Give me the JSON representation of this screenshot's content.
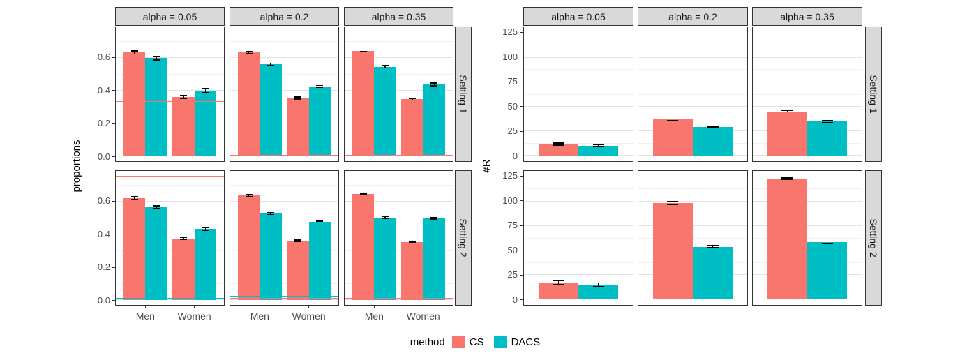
{
  "legend": {
    "title": "method",
    "items": [
      {
        "label": "CS",
        "color": "#F8766D"
      },
      {
        "label": "DACS",
        "color": "#00BFC4"
      }
    ]
  },
  "colors": {
    "cs": "#F8766D",
    "dacs": "#00BFC4",
    "strip_bg": "#D9D9D9",
    "border": "#333333",
    "grid_major": "#E3E3E3",
    "grid_minor": "#F0F0F0",
    "axis_text": "#4D4D4D",
    "error_bar": "#000000"
  },
  "chart_data": [
    {
      "type": "bar",
      "ylabel": "proportions",
      "xlabel": "",
      "facet_cols": [
        "alpha = 0.05",
        "alpha = 0.2",
        "alpha = 0.35"
      ],
      "facet_rows": [
        "Setting 1",
        "Setting 2"
      ],
      "x_ticks": [
        "Men",
        "Women"
      ],
      "ylim": [
        -0.03,
        0.787
      ],
      "yticks": [
        0.0,
        0.2,
        0.4,
        0.6
      ],
      "ytick_labels": [
        "0.0",
        "0.2",
        "0.4",
        "0.6"
      ],
      "yticks_minor": [
        0.1,
        0.3,
        0.5,
        0.7
      ],
      "legend_position": "bottom",
      "grid": true,
      "panels": [
        {
          "row": "Setting 1",
          "col": "alpha = 0.05",
          "series": [
            {
              "name": "CS",
              "values": [
                0.633,
                0.36
              ],
              "errors": [
                0.01,
                0.01
              ]
            },
            {
              "name": "DACS",
              "values": [
                0.598,
                0.4
              ],
              "errors": [
                0.01,
                0.012
              ]
            }
          ],
          "ref_lines": [
            {
              "y": 0.333,
              "series": "CS"
            }
          ]
        },
        {
          "row": "Setting 1",
          "col": "alpha = 0.2",
          "series": [
            {
              "name": "CS",
              "values": [
                0.633,
                0.355
              ],
              "errors": [
                0.006,
                0.006
              ]
            },
            {
              "name": "DACS",
              "values": [
                0.56,
                0.425
              ],
              "errors": [
                0.007,
                0.007
              ]
            }
          ],
          "ref_lines": [
            {
              "y": 0.005,
              "series": "CS"
            }
          ]
        },
        {
          "row": "Setting 1",
          "col": "alpha = 0.35",
          "series": [
            {
              "name": "CS",
              "values": [
                0.643,
                0.348
              ],
              "errors": [
                0.005,
                0.005
              ]
            },
            {
              "name": "DACS",
              "values": [
                0.545,
                0.438
              ],
              "errors": [
                0.007,
                0.008
              ]
            }
          ],
          "ref_lines": [
            {
              "y": 0.005,
              "series": "CS"
            }
          ]
        },
        {
          "row": "Setting 2",
          "col": "alpha = 0.05",
          "series": [
            {
              "name": "CS",
              "values": [
                0.622,
                0.375
              ],
              "errors": [
                0.008,
                0.007
              ]
            },
            {
              "name": "DACS",
              "values": [
                0.567,
                0.432
              ],
              "errors": [
                0.008,
                0.009
              ]
            }
          ],
          "ref_lines": [
            {
              "y": 0.755,
              "series": "CS"
            },
            {
              "y": 0.01,
              "series": "DACS"
            }
          ]
        },
        {
          "row": "Setting 2",
          "col": "alpha = 0.2",
          "series": [
            {
              "name": "CS",
              "values": [
                0.637,
                0.36
              ],
              "errors": [
                0.005,
                0.005
              ]
            },
            {
              "name": "DACS",
              "values": [
                0.526,
                0.476
              ],
              "errors": [
                0.005,
                0.005
              ]
            }
          ],
          "ref_lines": [
            {
              "y": 0.022,
              "series": "DACS"
            },
            {
              "y": 0.01,
              "series": "CS"
            }
          ]
        },
        {
          "row": "Setting 2",
          "col": "alpha = 0.35",
          "series": [
            {
              "name": "CS",
              "values": [
                0.647,
                0.353
              ],
              "errors": [
                0.004,
                0.004
              ]
            },
            {
              "name": "DACS",
              "values": [
                0.503,
                0.498
              ],
              "errors": [
                0.005,
                0.005
              ]
            }
          ],
          "ref_lines": [
            {
              "y": 0.01,
              "series": "CS"
            }
          ]
        }
      ]
    },
    {
      "type": "bar",
      "ylabel": "#R",
      "xlabel": "",
      "facet_cols": [
        "alpha = 0.05",
        "alpha = 0.2",
        "alpha = 0.35"
      ],
      "facet_rows": [
        "Setting 1",
        "Setting 2"
      ],
      "x_ticks": [
        ""
      ],
      "ylim": [
        -6,
        131
      ],
      "yticks": [
        0,
        25,
        50,
        75,
        100,
        125
      ],
      "ytick_labels": [
        "0",
        "25",
        "50",
        "75",
        "100",
        "125"
      ],
      "yticks_minor": [
        12.5,
        37.5,
        62.5,
        87.5,
        112.5
      ],
      "legend_position": "bottom",
      "grid": true,
      "panels": [
        {
          "row": "Setting 1",
          "col": "alpha = 0.05",
          "series": [
            {
              "name": "CS",
              "values": [
                11.5
              ],
              "errors": [
                1.2
              ]
            },
            {
              "name": "DACS",
              "values": [
                10.0
              ],
              "errors": [
                1.0
              ]
            }
          ],
          "ref_lines": []
        },
        {
          "row": "Setting 1",
          "col": "alpha = 0.2",
          "series": [
            {
              "name": "CS",
              "values": [
                36.5
              ],
              "errors": [
                0.8
              ]
            },
            {
              "name": "DACS",
              "values": [
                29.0
              ],
              "errors": [
                0.8
              ]
            }
          ],
          "ref_lines": []
        },
        {
          "row": "Setting 1",
          "col": "alpha = 0.35",
          "series": [
            {
              "name": "CS",
              "values": [
                45.0
              ],
              "errors": [
                0.6
              ]
            },
            {
              "name": "DACS",
              "values": [
                34.5
              ],
              "errors": [
                1.0
              ]
            }
          ],
          "ref_lines": []
        },
        {
          "row": "Setting 2",
          "col": "alpha = 0.05",
          "series": [
            {
              "name": "CS",
              "values": [
                17.0
              ],
              "errors": [
                2.0
              ]
            },
            {
              "name": "DACS",
              "values": [
                14.5
              ],
              "errors": [
                1.8
              ]
            }
          ],
          "ref_lines": []
        },
        {
          "row": "Setting 2",
          "col": "alpha = 0.2",
          "series": [
            {
              "name": "CS",
              "values": [
                98.0
              ],
              "errors": [
                1.5
              ]
            },
            {
              "name": "DACS",
              "values": [
                53.5
              ],
              "errors": [
                1.0
              ]
            }
          ],
          "ref_lines": []
        },
        {
          "row": "Setting 2",
          "col": "alpha = 0.35",
          "series": [
            {
              "name": "CS",
              "values": [
                123.0
              ],
              "errors": [
                0.8
              ]
            },
            {
              "name": "DACS",
              "values": [
                58.0
              ],
              "errors": [
                1.3
              ]
            }
          ],
          "ref_lines": []
        }
      ]
    }
  ]
}
